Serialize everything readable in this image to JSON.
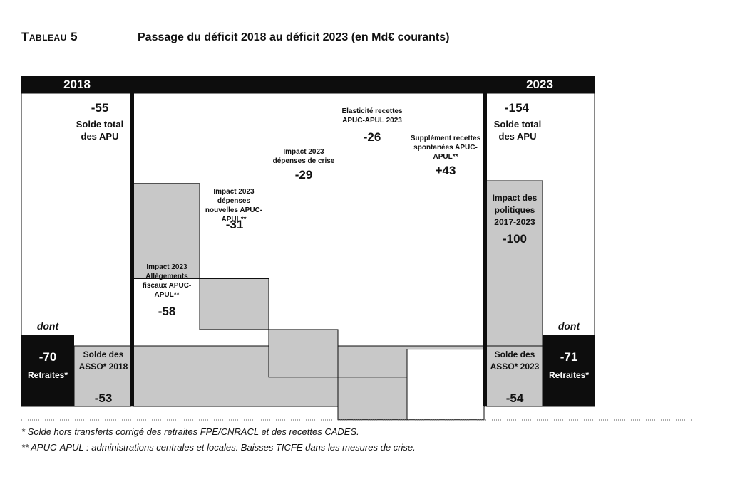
{
  "header": {
    "tableau_label": "Tableau 5",
    "title": "Passage du déficit 2018 au déficit 2023 (en Md€ courants)"
  },
  "chart_data": {
    "type": "bar",
    "subtype": "waterfall",
    "unit": "Md€ courants",
    "years": {
      "start": "2018",
      "end": "2023"
    },
    "start": {
      "label": "Solde total des APU",
      "value": -55
    },
    "end": {
      "label": "Solde total des APU",
      "value": -154
    },
    "steps": [
      {
        "label": "Impact 2023 Allègements fiscaux APUC-APUL**",
        "value": -58,
        "display": "-58"
      },
      {
        "label": "Impact 2023 dépenses nouvelles APUC-APUL**",
        "value": -31,
        "display": "-31"
      },
      {
        "label": "Impact 2023 dépenses de crise",
        "value": -29,
        "display": "-29"
      },
      {
        "label": "Élasticité recettes APUC-APUL 2023",
        "value": -26,
        "display": "-26"
      },
      {
        "label": "Supplément recettes spontanées APUC-APUL**",
        "value": 43,
        "display": "+43"
      }
    ],
    "policy_impact": {
      "label": "Impact des politiques 2017-2023",
      "value": -100
    },
    "breakdown_label": "dont",
    "breakdown_2018": {
      "retraites": {
        "label": "Retraites*",
        "value": -70
      },
      "asso": {
        "label": "Solde des ASSO* 2018",
        "value": -53
      }
    },
    "breakdown_2023": {
      "retraites": {
        "label": "Retraites*",
        "value": -71
      },
      "asso": {
        "label": "Solde des ASSO* 2023",
        "value": -54
      }
    },
    "colors": {
      "black": "#0d0d0d",
      "grey": "#c8c8c8",
      "white": "#ffffff"
    }
  },
  "footnotes": [
    "* Solde hors transferts corrigé des retraites FPE/CNRACL et des recettes CADES.",
    "** APUC-APUL : administrations centrales et locales. Baisses TICFE dans les mesures de crise."
  ]
}
